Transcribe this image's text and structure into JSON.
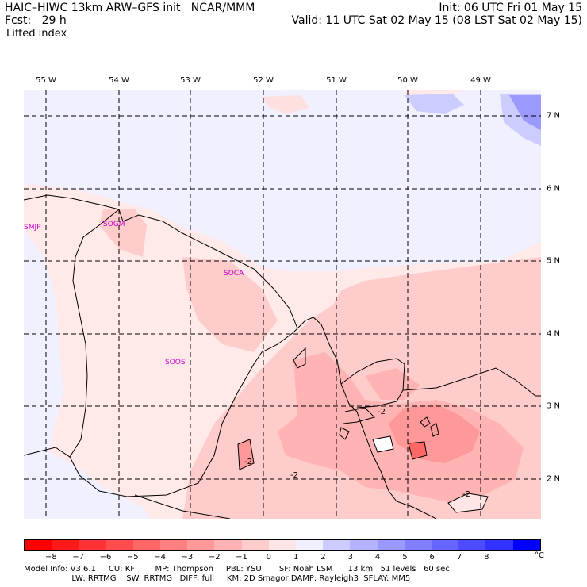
{
  "header": {
    "title_left": "HAIC–HIWC 13km ARW–GFS init   NCAR/MMM",
    "fcst_line": "Fcst:   29 h",
    "field": "Lifted index",
    "init_line": "Init: 06 UTC Fri 01 May 15",
    "valid_line": "Valid: 11 UTC Sat 02 May 15 (08 LST Sat 02 May 15)"
  },
  "map": {
    "lon_labels": [
      "55 W",
      "54 W",
      "53 W",
      "52 W",
      "51 W",
      "50 W",
      "49 W"
    ],
    "lat_labels": [
      "7 N",
      "6 N",
      "5 N",
      "4 N",
      "3 N",
      "2 N"
    ],
    "stations": [
      {
        "id": "SMJP"
      },
      {
        "id": "SOGM"
      },
      {
        "id": "SOCA"
      },
      {
        "id": "SOOS"
      }
    ],
    "contour_labels": [
      "-2",
      "-2",
      "-2",
      "-2"
    ],
    "station_color": "#cc00cc"
  },
  "colorbar": {
    "ticks": [
      "−8",
      "−7",
      "−6",
      "−5",
      "−4",
      "−3",
      "−2",
      "−1",
      "0",
      "1",
      "2",
      "3",
      "4",
      "5",
      "6",
      "7",
      "8"
    ],
    "unit": "°C",
    "colors": [
      "#ff0000",
      "#ff1a1a",
      "#ff3333",
      "#ff4d4d",
      "#ff6666",
      "#ff8080",
      "#ff9999",
      "#ffb3b3",
      "#ffcccc",
      "#ffe6e6",
      "#f0f0ff",
      "#ccccff",
      "#b3b3ff",
      "#9999ff",
      "#8080ff",
      "#6666ff",
      "#4d4dff",
      "#3333ff",
      "#0000ff"
    ]
  },
  "info": {
    "line1": "Model Info: V3.6.1     CU: KF        MP: Thompson     PBL: YSU       SF: Noah LSM      13 km   51 levels   60 sec",
    "line2": "                   LW: RRTMG    SW: RRTMG   DIFF: full     KM: 2D Smagor DAMP: Rayleigh3  SFLAY: MM5"
  }
}
